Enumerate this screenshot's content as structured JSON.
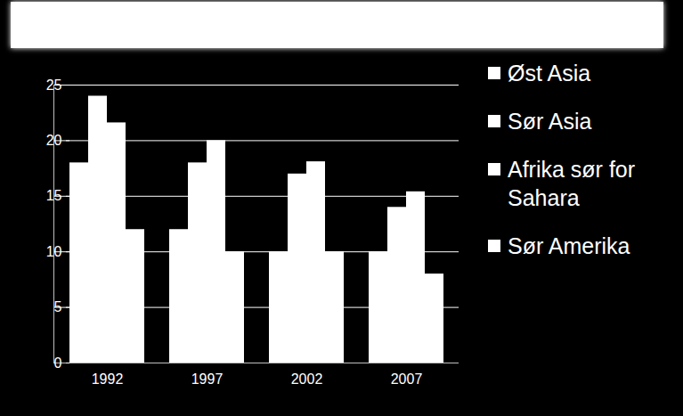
{
  "chart_data": {
    "type": "bar",
    "categories": [
      "1992",
      "1997",
      "2002",
      "2007"
    ],
    "series": [
      {
        "name": "Øst Asia",
        "color": "#ffffff",
        "values": [
          18,
          12,
          10,
          10
        ]
      },
      {
        "name": "Sør Asia",
        "color": "#ffffff",
        "values": [
          24,
          18,
          17,
          14
        ]
      },
      {
        "name": "Afrika sør for Sahara",
        "color": "#ffffff",
        "values": [
          21.6,
          20,
          18.1,
          15.4
        ]
      },
      {
        "name": "Sør Amerika",
        "color": "#ffffff",
        "values": [
          12,
          10,
          10,
          8
        ]
      }
    ],
    "ylim": [
      0,
      25
    ],
    "yticks": [
      0,
      5,
      10,
      15,
      20,
      25
    ],
    "grid": true,
    "legend": "right"
  }
}
